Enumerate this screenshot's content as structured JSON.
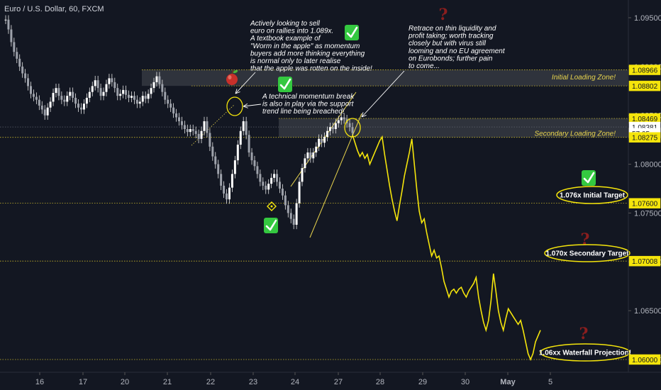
{
  "chart_data": {
    "type": "line",
    "symbol_title": "Euro / U.S. Dollar, 60, FXCM",
    "x_ticks": [
      "16",
      "17",
      "20",
      "21",
      "22",
      "23",
      "24",
      "27",
      "28",
      "29",
      "30",
      "May",
      "5"
    ],
    "y_ticks": [
      "1.09500",
      "1.09000",
      "1.08500",
      "1.08000",
      "1.07500",
      "1.07000",
      "1.06500",
      "1.06000"
    ],
    "ylim": [
      1.0585,
      1.097
    ],
    "price_tags": [
      {
        "value": 1.08966,
        "label": "1.08966",
        "style": "yellow"
      },
      {
        "value": 1.08802,
        "label": "1.08802",
        "style": "yellow"
      },
      {
        "value": 1.08469,
        "label": "1.08469",
        "style": "yellow"
      },
      {
        "value": 1.08469,
        "label": "1.08469",
        "style": "yellow_low"
      },
      {
        "value": 1.08381,
        "label": "1.08381",
        "style": "white"
      },
      {
        "value": 1.0831,
        "label": "57:05",
        "style": "dark"
      },
      {
        "value": 1.08275,
        "label": "1.08275",
        "style": "yellow"
      },
      {
        "value": 1.076,
        "label": "1.07600",
        "style": "yellow"
      },
      {
        "value": 1.07008,
        "label": "1.07008",
        "style": "yellow"
      },
      {
        "value": 1.06,
        "label": "1.06000",
        "style": "yellow"
      }
    ],
    "horizontal_levels": [
      1.08966,
      1.08802,
      1.08469,
      1.08275,
      1.076,
      1.07008,
      1.06
    ],
    "zones": [
      {
        "label": "Initial Loading Zone!",
        "top": 1.08966,
        "bottom": 1.08802
      },
      {
        "label": "Secondary Loading Zone!",
        "top": 1.08469,
        "bottom": 1.08275
      }
    ],
    "historical_series": [
      1.0948,
      1.0938,
      1.0925,
      1.0915,
      1.0908,
      1.09,
      1.0893,
      1.0888,
      1.088,
      1.0872,
      1.0869,
      1.0866,
      1.086,
      1.0856,
      1.085,
      1.0858,
      1.0864,
      1.0873,
      1.0878,
      1.087,
      1.0866,
      1.0864,
      1.087,
      1.0874,
      1.0868,
      1.0862,
      1.0858,
      1.0856,
      1.0862,
      1.0868,
      1.0874,
      1.088,
      1.0886,
      1.0878,
      1.087,
      1.0874,
      1.0882,
      1.0888,
      1.0884,
      1.0878,
      1.087,
      1.0872,
      1.0876,
      1.0871,
      1.0868,
      1.087,
      1.0866,
      1.0862,
      1.0864,
      1.087,
      1.0867,
      1.0872,
      1.0878,
      1.0884,
      1.089,
      1.0882,
      1.0874,
      1.0866,
      1.0862,
      1.0858,
      1.0852,
      1.0848,
      1.0844,
      1.084,
      1.0836,
      1.0833,
      1.0836,
      1.0834,
      1.0831,
      1.0826,
      1.0834,
      1.0844,
      1.0832,
      1.0818,
      1.0808,
      1.08,
      1.079,
      1.0778,
      1.077,
      1.0764,
      1.0776,
      1.079,
      1.0804,
      1.082,
      1.0834,
      1.0844,
      1.083,
      1.0812,
      1.0804,
      1.0798,
      1.079,
      1.0782,
      1.0778,
      1.0774,
      1.078,
      1.0786,
      1.079,
      1.0782,
      1.0775,
      1.0768,
      1.0758,
      1.075,
      1.0744,
      1.0738,
      1.076,
      1.0782,
      1.0796,
      1.0806,
      1.0812,
      1.0806,
      1.0812,
      1.0818,
      1.0826,
      1.0822,
      1.0828,
      1.0834,
      1.0838,
      1.0836,
      1.0842,
      1.0845,
      1.0848,
      1.0846,
      1.0842,
      1.0838,
      1.0832
    ],
    "projection_series": [
      1.083,
      1.0822,
      1.0814,
      1.0808,
      1.0812,
      1.0806,
      1.081,
      1.08,
      1.0806,
      1.0812,
      1.0818,
      1.0824,
      1.0828,
      1.081,
      1.0794,
      1.0778,
      1.0764,
      1.0752,
      1.0742,
      1.0758,
      1.0772,
      1.0788,
      1.08,
      1.0812,
      1.0826,
      1.08,
      1.0774,
      1.0752,
      1.074,
      1.0744,
      1.073,
      1.0718,
      1.0706,
      1.0712,
      1.0704,
      1.0706,
      1.0694,
      1.068,
      1.0672,
      1.0664,
      1.067,
      1.0672,
      1.0668,
      1.0672,
      1.0674,
      1.0668,
      1.0664,
      1.067,
      1.0674,
      1.0678,
      1.0684,
      1.0664,
      1.065,
      1.0638,
      1.063,
      1.064,
      1.066,
      1.0688,
      1.067,
      1.065,
      1.0638,
      1.063,
      1.0642,
      1.0652,
      1.0648,
      1.0644,
      1.064,
      1.0636,
      1.064,
      1.063,
      1.0618,
      1.0606,
      1.06,
      1.0606,
      1.0618,
      1.0624,
      1.063
    ],
    "annotations": {
      "note_sell": [
        "Actively looking to sell",
        "euro on rallies into 1.089x.",
        "A textbook example of",
        "\"Worm in the apple\" as momentum",
        "buyers add more thinking everything",
        "is normal only to later realise",
        "that the apple was rotten on the inside!"
      ],
      "note_break": [
        "A technical momentum break",
        "is also in play via the support",
        "trend line being breached!"
      ],
      "note_retrace": [
        "Retrace on thin liquidity and",
        "profit taking; worth tracking",
        "closely but with virus still",
        "looming and no EU agreement",
        "on Eurobonds; further pain",
        "to come..."
      ],
      "targets": [
        {
          "label": "1.076x Initial Target",
          "value": 1.076
        },
        {
          "label": "1.070x Secondary Target",
          "value": 1.0701
        },
        {
          "label": "1.06xx Waterfall Projection!",
          "value": 1.06
        }
      ]
    },
    "colors": {
      "background": "#131722",
      "candles": "#e6e6e6",
      "projection": "#f5e50b",
      "zone_fill": "#3a3d46",
      "level_line": "#c8b62b",
      "check_green": "#34c840",
      "question_red": "#8b1e1e",
      "axis_text": "#b2b5be"
    },
    "icons": [
      "apple-icon",
      "check-mark-icon",
      "question-mark-icon",
      "target-ellipse"
    ]
  }
}
